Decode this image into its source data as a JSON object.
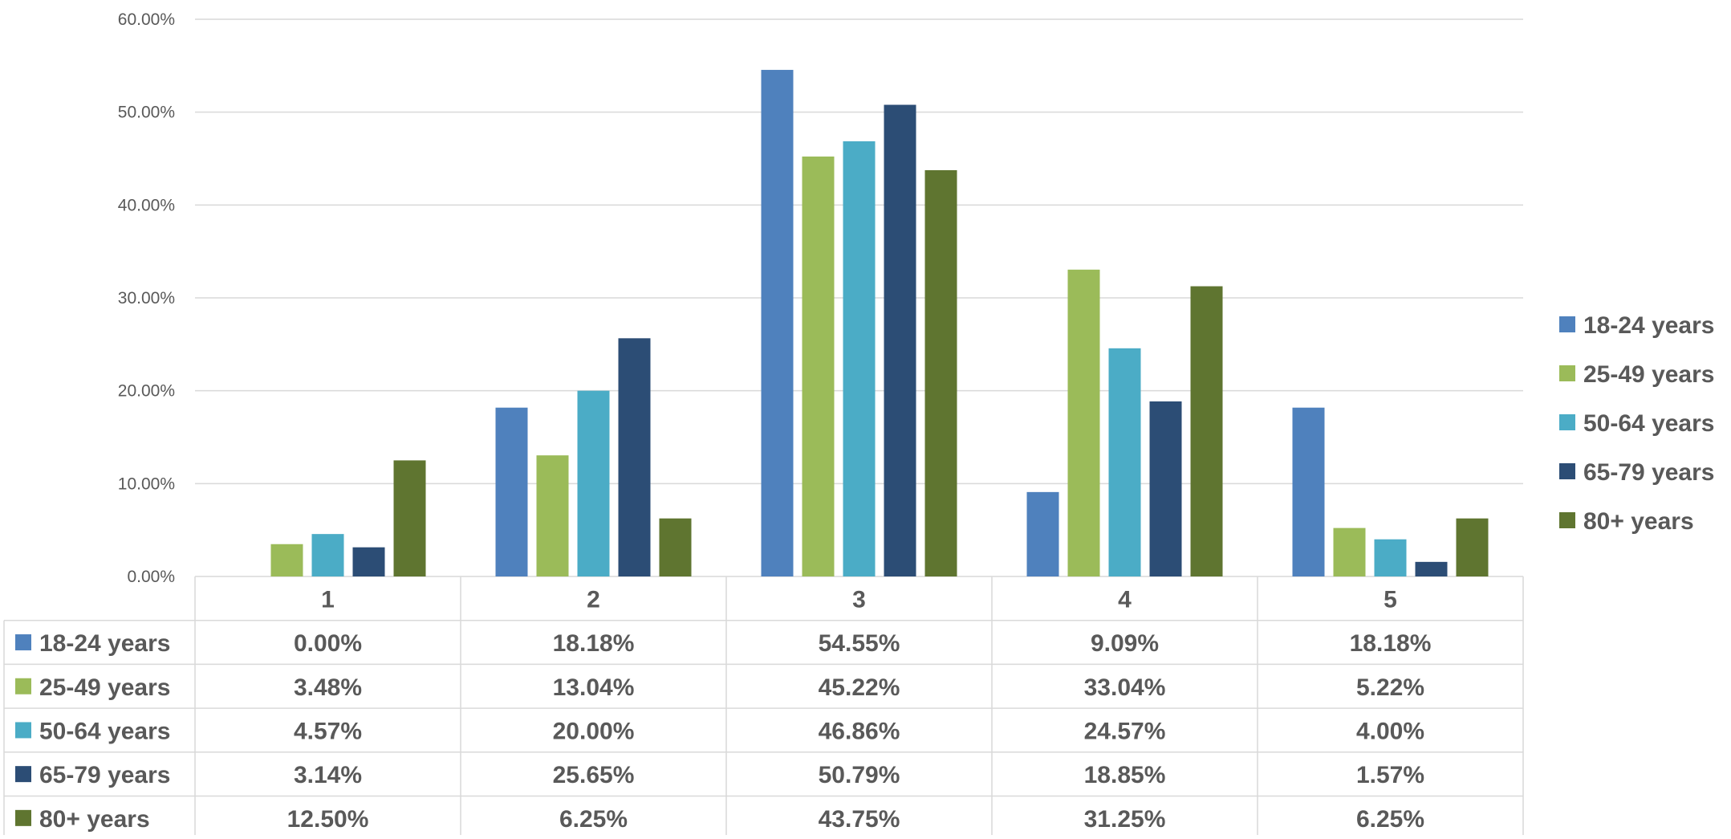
{
  "chart_data": {
    "type": "bar",
    "categories": [
      "1",
      "2",
      "3",
      "4",
      "5"
    ],
    "series": [
      {
        "name": "18-24 years",
        "color": "#4F81BD",
        "values": [
          0.0,
          18.18,
          54.55,
          9.09,
          18.18
        ],
        "labels": [
          "0.00%",
          "18.18%",
          "54.55%",
          "9.09%",
          "18.18%"
        ]
      },
      {
        "name": "25-49 years",
        "color": "#9BBB59",
        "values": [
          3.48,
          13.04,
          45.22,
          33.04,
          5.22
        ],
        "labels": [
          "3.48%",
          "13.04%",
          "45.22%",
          "33.04%",
          "5.22%"
        ]
      },
      {
        "name": "50-64 years",
        "color": "#4BACC6",
        "values": [
          4.57,
          20.0,
          46.86,
          24.57,
          4.0
        ],
        "labels": [
          "4.57%",
          "20.00%",
          "46.86%",
          "24.57%",
          "4.00%"
        ]
      },
      {
        "name": "65-79 years",
        "color": "#2C4D75",
        "values": [
          3.14,
          25.65,
          50.79,
          18.85,
          1.57
        ],
        "labels": [
          "3.14%",
          "25.65%",
          "50.79%",
          "18.85%",
          "1.57%"
        ]
      },
      {
        "name": "80+ years",
        "color": "#5F7530",
        "values": [
          12.5,
          6.25,
          43.75,
          31.25,
          6.25
        ],
        "labels": [
          "12.50%",
          "6.25%",
          "43.75%",
          "31.25%",
          "6.25%"
        ]
      }
    ],
    "y_ticks": [
      "0.00%",
      "10.00%",
      "20.00%",
      "30.00%",
      "40.00%",
      "50.00%",
      "60.00%"
    ],
    "ylim": [
      0,
      60
    ],
    "grid": true,
    "legend_position": "right",
    "data_table": true
  }
}
